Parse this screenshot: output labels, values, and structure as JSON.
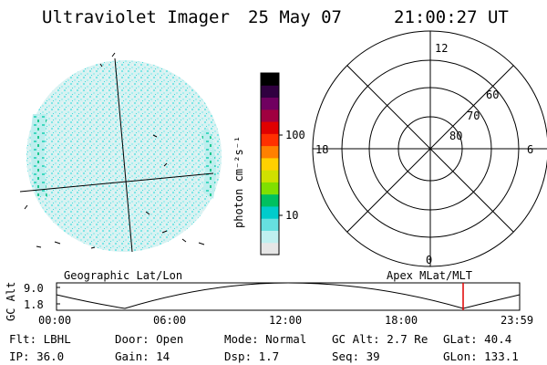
{
  "header": {
    "title": "Ultraviolet Imager",
    "date": "25 May 07",
    "time": "21:00:27 UT"
  },
  "colorbar": {
    "unit_label": "photon cm⁻²s⁻¹",
    "ticks": [
      "100",
      "10"
    ],
    "colors": [
      "#e6e6e6",
      "#bff0f0",
      "#66e0e0",
      "#00cccc",
      "#00c060",
      "#80e000",
      "#d0e000",
      "#ffd000",
      "#ff8000",
      "#ff3000",
      "#e00000",
      "#a00040",
      "#700060",
      "#300040",
      "#000000"
    ]
  },
  "polar": {
    "mlt_labels": [
      "12",
      "18",
      "6",
      "0"
    ],
    "lat_labels": [
      "60",
      "70",
      "80"
    ]
  },
  "timeline": {
    "axis_label": "GC Alt",
    "y_ticks": [
      "9.0",
      "1.8"
    ],
    "left_label": "Geographic Lat/Lon",
    "right_label": "Apex MLat/MLT",
    "x_ticks": [
      "00:00",
      "06:00",
      "12:00",
      "18:00",
      "23:59"
    ],
    "marker_color": "#e00000"
  },
  "info": {
    "filter": "Flt: LBHL",
    "ip": "IP: 36.0",
    "door": "Door: Open",
    "gain": "Gain: 14",
    "mode": "Mode: Normal",
    "dsp": "Dsp:    1.7",
    "gc_alt": "GC Alt: 2.7 Re",
    "seq": "Seq: 39",
    "glat": "GLat:  40.4",
    "glon": "GLon: 133.1"
  }
}
